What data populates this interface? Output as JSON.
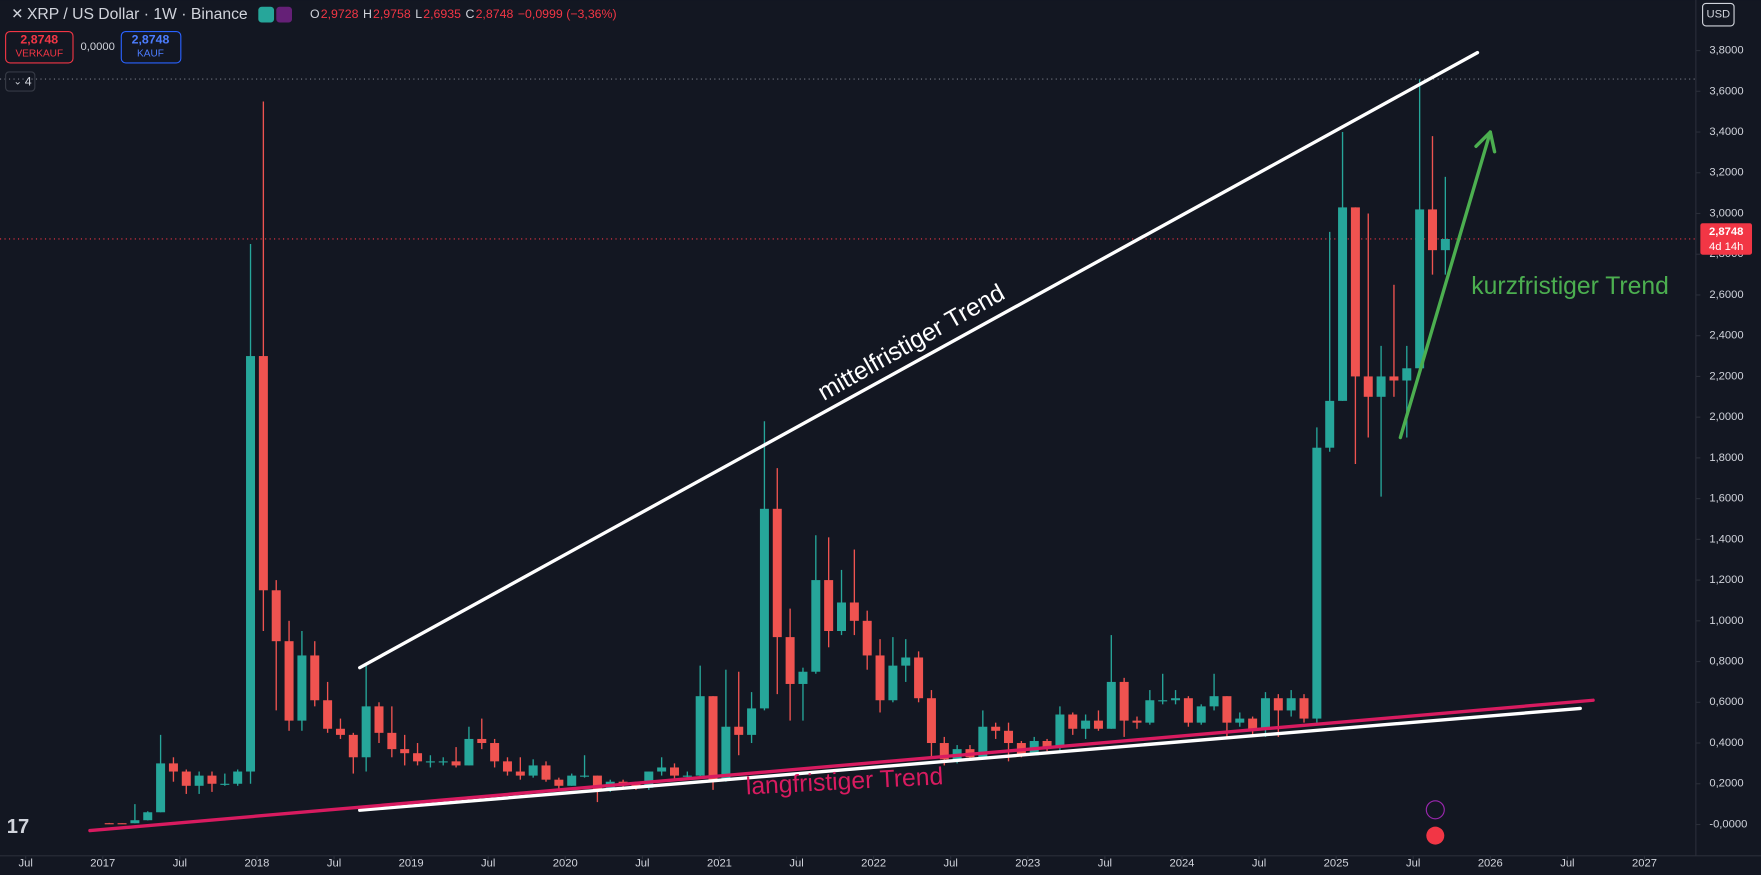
{
  "header": {
    "title": "XRP / US Dollar · 1W · Binance",
    "ohlc": [
      {
        "label": "O",
        "value": "2,9728"
      },
      {
        "label": "H",
        "value": "2,9758"
      },
      {
        "label": "L",
        "value": "2,6935"
      },
      {
        "label": "C",
        "value": "2,8748"
      }
    ],
    "change": "−0,0999 (−3,36%)",
    "sell": {
      "price": "2,8748",
      "label": "VERKAUF"
    },
    "spread": "0,0000",
    "buy": {
      "price": "2,8748",
      "label": "KAUF"
    },
    "indicators": "4",
    "currency": "USD"
  },
  "chart_data": {
    "type": "candlestick",
    "up_color": "#26a69a",
    "down_color": "#ef5350",
    "grid": false,
    "x": [
      "2017-01",
      "2017-02",
      "2017-03",
      "2017-04",
      "2017-05",
      "2017-06",
      "2017-07",
      "2017-08",
      "2017-09",
      "2017-10",
      "2017-11",
      "2017-12",
      "2018-01",
      "2018-02",
      "2018-03",
      "2018-04",
      "2018-05",
      "2018-06",
      "2018-07",
      "2018-08",
      "2018-09",
      "2018-10",
      "2018-11",
      "2018-12",
      "2019-01",
      "2019-02",
      "2019-03",
      "2019-04",
      "2019-05",
      "2019-06",
      "2019-07",
      "2019-08",
      "2019-09",
      "2019-10",
      "2019-11",
      "2019-12",
      "2020-01",
      "2020-02",
      "2020-03",
      "2020-04",
      "2020-05",
      "2020-06",
      "2020-07",
      "2020-08",
      "2020-09",
      "2020-10",
      "2020-11",
      "2020-12",
      "2021-01",
      "2021-02",
      "2021-03",
      "2021-04",
      "2021-05",
      "2021-06",
      "2021-07",
      "2021-08",
      "2021-09",
      "2021-10",
      "2021-11",
      "2021-12",
      "2022-01",
      "2022-02",
      "2022-03",
      "2022-04",
      "2022-05",
      "2022-06",
      "2022-07",
      "2022-08",
      "2022-09",
      "2022-10",
      "2022-11",
      "2022-12",
      "2023-01",
      "2023-02",
      "2023-03",
      "2023-04",
      "2023-05",
      "2023-06",
      "2023-07",
      "2023-08",
      "2023-09",
      "2023-10",
      "2023-11",
      "2023-12",
      "2024-01",
      "2024-02",
      "2024-03",
      "2024-04",
      "2024-05",
      "2024-06",
      "2024-07",
      "2024-08",
      "2024-09",
      "2024-10",
      "2024-11",
      "2024-12",
      "2025-01",
      "2025-02",
      "2025-03",
      "2025-04",
      "2025-05",
      "2025-06",
      "2025-07",
      "2025-08",
      "2025-09"
    ],
    "open": [
      0.0064,
      0.0063,
      0.0061,
      0.021,
      0.06,
      0.3,
      0.26,
      0.19,
      0.24,
      0.2,
      0.2,
      0.26,
      2.3,
      1.15,
      0.9,
      0.51,
      0.83,
      0.61,
      0.47,
      0.44,
      0.33,
      0.58,
      0.45,
      0.37,
      0.35,
      0.31,
      0.31,
      0.31,
      0.29,
      0.42,
      0.4,
      0.31,
      0.26,
      0.24,
      0.29,
      0.22,
      0.19,
      0.24,
      0.24,
      0.17,
      0.21,
      0.2,
      0.18,
      0.26,
      0.28,
      0.24,
      0.24,
      0.63,
      0.22,
      0.48,
      0.44,
      0.57,
      1.55,
      0.92,
      0.69,
      0.75,
      1.2,
      0.95,
      1.09,
      1.0,
      0.83,
      0.61,
      0.78,
      0.82,
      0.62,
      0.4,
      0.32,
      0.37,
      0.33,
      0.48,
      0.46,
      0.4,
      0.34,
      0.41,
      0.38,
      0.54,
      0.47,
      0.51,
      0.47,
      0.7,
      0.51,
      0.5,
      0.61,
      0.61,
      0.62,
      0.5,
      0.58,
      0.63,
      0.5,
      0.52,
      0.47,
      0.62,
      0.56,
      0.62,
      0.52,
      1.85,
      2.08,
      3.03,
      2.2,
      2.1,
      2.2,
      2.18,
      2.24,
      3.02,
      2.82
    ],
    "high": [
      0.0078,
      0.0067,
      0.1,
      0.065,
      0.44,
      0.33,
      0.27,
      0.26,
      0.26,
      0.25,
      0.27,
      2.85,
      3.55,
      1.2,
      1.0,
      0.95,
      0.9,
      0.7,
      0.52,
      0.45,
      0.78,
      0.6,
      0.58,
      0.44,
      0.4,
      0.34,
      0.33,
      0.38,
      0.48,
      0.52,
      0.42,
      0.33,
      0.33,
      0.32,
      0.31,
      0.23,
      0.25,
      0.34,
      0.24,
      0.22,
      0.22,
      0.21,
      0.26,
      0.33,
      0.3,
      0.26,
      0.78,
      0.63,
      0.76,
      0.75,
      0.65,
      1.98,
      1.75,
      1.06,
      0.77,
      1.42,
      1.41,
      1.25,
      1.35,
      1.05,
      0.91,
      0.92,
      0.91,
      0.85,
      0.66,
      0.43,
      0.39,
      0.39,
      0.56,
      0.5,
      0.5,
      0.41,
      0.43,
      0.42,
      0.58,
      0.55,
      0.54,
      0.56,
      0.93,
      0.72,
      0.53,
      0.66,
      0.74,
      0.66,
      0.63,
      0.59,
      0.74,
      0.63,
      0.55,
      0.53,
      0.65,
      0.64,
      0.66,
      0.64,
      1.95,
      2.91,
      3.4,
      3.03,
      3.0,
      2.35,
      2.65,
      2.35,
      3.66,
      3.38,
      3.18
    ],
    "low": [
      0.006,
      0.0058,
      0.006,
      0.02,
      0.06,
      0.21,
      0.15,
      0.15,
      0.16,
      0.19,
      0.19,
      0.2,
      0.95,
      0.56,
      0.46,
      0.46,
      0.58,
      0.45,
      0.42,
      0.25,
      0.26,
      0.4,
      0.33,
      0.29,
      0.29,
      0.28,
      0.29,
      0.28,
      0.29,
      0.37,
      0.28,
      0.24,
      0.22,
      0.23,
      0.21,
      0.17,
      0.19,
      0.23,
      0.11,
      0.16,
      0.18,
      0.17,
      0.17,
      0.24,
      0.22,
      0.23,
      0.23,
      0.17,
      0.21,
      0.34,
      0.4,
      0.56,
      0.64,
      0.51,
      0.51,
      0.74,
      0.87,
      0.93,
      0.93,
      0.76,
      0.55,
      0.6,
      0.7,
      0.6,
      0.33,
      0.29,
      0.3,
      0.32,
      0.32,
      0.42,
      0.31,
      0.33,
      0.34,
      0.36,
      0.36,
      0.44,
      0.42,
      0.46,
      0.47,
      0.43,
      0.47,
      0.49,
      0.59,
      0.59,
      0.48,
      0.49,
      0.56,
      0.42,
      0.48,
      0.44,
      0.43,
      0.43,
      0.53,
      0.5,
      0.5,
      1.83,
      2.08,
      1.77,
      1.9,
      1.61,
      2.1,
      1.9,
      2.23,
      2.7,
      2.7
    ],
    "close": [
      0.0063,
      0.0061,
      0.021,
      0.06,
      0.3,
      0.26,
      0.19,
      0.24,
      0.2,
      0.2,
      0.26,
      2.3,
      1.15,
      0.9,
      0.51,
      0.83,
      0.61,
      0.47,
      0.44,
      0.33,
      0.58,
      0.45,
      0.37,
      0.35,
      0.31,
      0.31,
      0.31,
      0.29,
      0.42,
      0.4,
      0.31,
      0.26,
      0.24,
      0.29,
      0.22,
      0.19,
      0.24,
      0.24,
      0.17,
      0.21,
      0.2,
      0.18,
      0.26,
      0.28,
      0.24,
      0.24,
      0.63,
      0.22,
      0.48,
      0.44,
      0.57,
      1.55,
      0.92,
      0.69,
      0.75,
      1.2,
      0.95,
      1.09,
      1.0,
      0.83,
      0.61,
      0.78,
      0.82,
      0.62,
      0.4,
      0.32,
      0.37,
      0.33,
      0.48,
      0.46,
      0.4,
      0.34,
      0.41,
      0.38,
      0.54,
      0.47,
      0.51,
      0.47,
      0.7,
      0.51,
      0.5,
      0.61,
      0.61,
      0.62,
      0.5,
      0.58,
      0.63,
      0.5,
      0.52,
      0.47,
      0.62,
      0.56,
      0.62,
      0.52,
      1.85,
      2.08,
      3.03,
      2.2,
      2.1,
      2.2,
      2.18,
      2.24,
      3.02,
      2.82,
      2.8748
    ],
    "xlim": [
      "2016-05",
      "2027-05"
    ],
    "xticks": [
      {
        "value": "2016-07",
        "label": "Jul"
      },
      {
        "value": "2017-01",
        "label": "2017"
      },
      {
        "value": "2017-07",
        "label": "Jul"
      },
      {
        "value": "2018-01",
        "label": "2018"
      },
      {
        "value": "2018-07",
        "label": "Jul"
      },
      {
        "value": "2019-01",
        "label": "2019"
      },
      {
        "value": "2019-07",
        "label": "Jul"
      },
      {
        "value": "2020-01",
        "label": "2020"
      },
      {
        "value": "2020-07",
        "label": "Jul"
      },
      {
        "value": "2021-01",
        "label": "2021"
      },
      {
        "value": "2021-07",
        "label": "Jul"
      },
      {
        "value": "2022-01",
        "label": "2022"
      },
      {
        "value": "2022-07",
        "label": "Jul"
      },
      {
        "value": "2023-01",
        "label": "2023"
      },
      {
        "value": "2023-07",
        "label": "Jul"
      },
      {
        "value": "2024-01",
        "label": "2024"
      },
      {
        "value": "2024-07",
        "label": "Jul"
      },
      {
        "value": "2025-01",
        "label": "2025"
      },
      {
        "value": "2025-07",
        "label": "Jul"
      },
      {
        "value": "2026-01",
        "label": "2026"
      },
      {
        "value": "2026-07",
        "label": "Jul"
      },
      {
        "value": "2027-01",
        "label": "2027"
      }
    ],
    "ylim": [
      -0.154,
      4.048
    ],
    "yticks": [
      {
        "value": 0,
        "label": "-0,0000"
      },
      {
        "value": 0.2,
        "label": "0,2000"
      },
      {
        "value": 0.4,
        "label": "0,4000"
      },
      {
        "value": 0.6,
        "label": "0,6000"
      },
      {
        "value": 0.8,
        "label": "0,8000"
      },
      {
        "value": 1,
        "label": "1,0000"
      },
      {
        "value": 1.2,
        "label": "1,2000"
      },
      {
        "value": 1.4,
        "label": "1,4000"
      },
      {
        "value": 1.6,
        "label": "1,6000"
      },
      {
        "value": 1.8,
        "label": "1,8000"
      },
      {
        "value": 2,
        "label": "2,0000"
      },
      {
        "value": 2.2,
        "label": "2,2000"
      },
      {
        "value": 2.4,
        "label": "2,4000"
      },
      {
        "value": 2.6,
        "label": "2,6000"
      },
      {
        "value": 2.8,
        "label": "2,8000"
      },
      {
        "value": 3,
        "label": "3,0000"
      },
      {
        "value": 3.2,
        "label": "3,2000"
      },
      {
        "value": 3.4,
        "label": "3,4000"
      },
      {
        "value": 3.6,
        "label": "3,6000"
      },
      {
        "value": 3.8,
        "label": "3,8000"
      }
    ],
    "last_price": {
      "value": 2.8748,
      "label": "2,8748"
    },
    "countdown": "4d 14h",
    "high_line": 3.66,
    "annotations": [
      {
        "text": "mittelfristiger Trend",
        "color": "#ffffff",
        "x1": "2018-09",
        "y1": 0.77,
        "x2": "2025-12",
        "y2": 3.79
      },
      {
        "text": "langfristiger Trend",
        "color": "#d81b60",
        "x1": "2016-12",
        "y1": -0.03,
        "x2": "2026-09",
        "y2": 0.61
      },
      {
        "text": "kurzfristiger Trend",
        "color": "#4caf50",
        "x1": "2025-06",
        "y1": 1.9,
        "x2": "2026-01",
        "y2": 3.4,
        "arrow": true
      }
    ],
    "lines": [
      {
        "color": "#ffffff",
        "x1": "2018-09",
        "y1": 0.07,
        "x2": "2026-08",
        "y2": 0.57
      }
    ]
  }
}
